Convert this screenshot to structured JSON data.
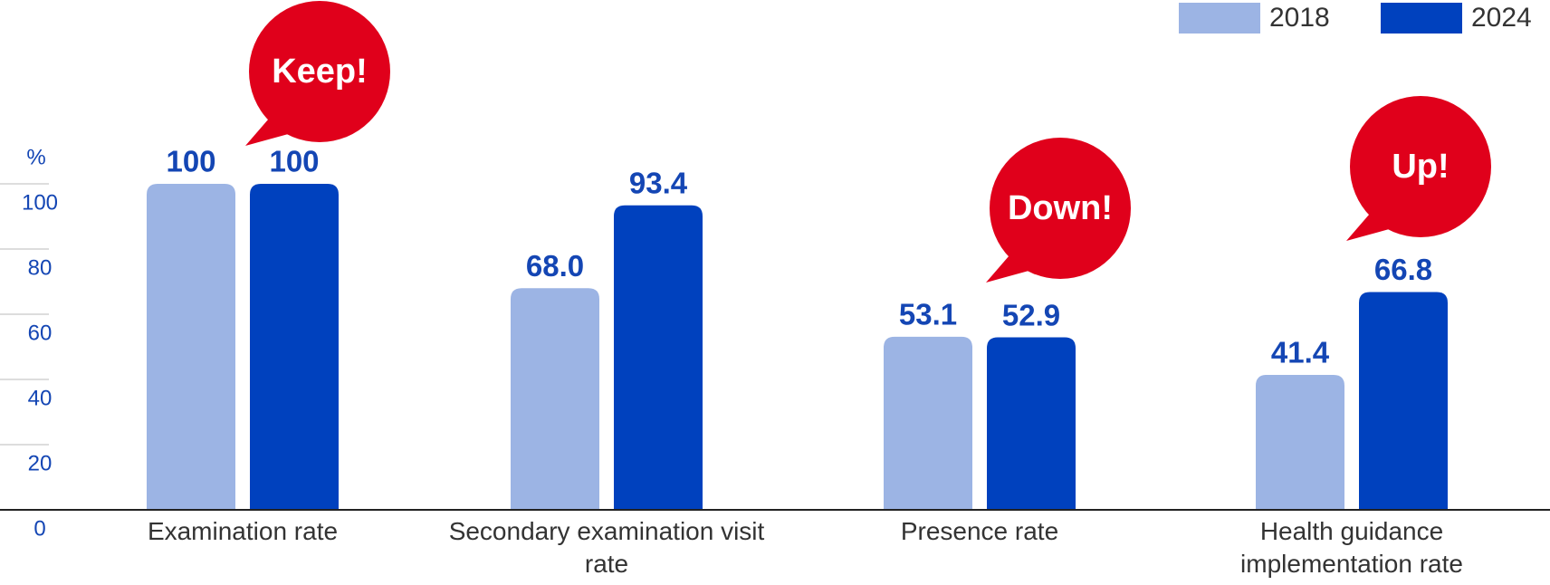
{
  "chart_data": {
    "type": "bar",
    "y_label": "%",
    "categories": [
      "Examination rate",
      "Secondary examination visit rate",
      "Presence rate",
      "Health guidance implementation rate"
    ],
    "series": [
      {
        "name": "2018",
        "color": "#9cb4e4",
        "values": [
          100,
          68.0,
          53.1,
          41.4
        ],
        "value_labels": [
          "100",
          "68.0",
          "53.1",
          "41.4"
        ]
      },
      {
        "name": "2024",
        "color": "#0041be",
        "values": [
          100,
          93.4,
          52.9,
          66.8
        ],
        "value_labels": [
          "100",
          "93.4",
          "52.9",
          "66.8"
        ]
      }
    ],
    "ylim": [
      0,
      100
    ],
    "yticks": [
      0,
      20,
      40,
      60,
      80,
      100
    ],
    "annotations": [
      "Keep!",
      "Down!",
      "Up!"
    ],
    "annotation_color": "#e0001b"
  }
}
